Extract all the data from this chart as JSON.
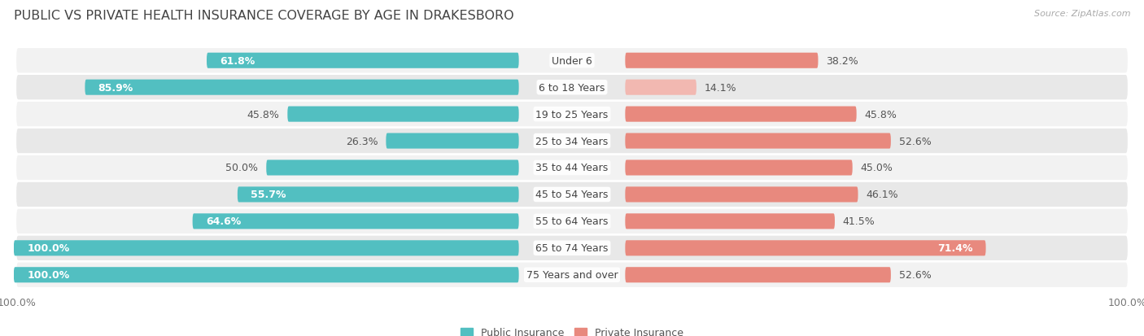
{
  "title": "PUBLIC VS PRIVATE HEALTH INSURANCE COVERAGE BY AGE IN DRAKESBORO",
  "source": "Source: ZipAtlas.com",
  "categories": [
    "Under 6",
    "6 to 18 Years",
    "19 to 25 Years",
    "25 to 34 Years",
    "35 to 44 Years",
    "45 to 54 Years",
    "55 to 64 Years",
    "65 to 74 Years",
    "75 Years and over"
  ],
  "public_values": [
    61.8,
    85.9,
    45.8,
    26.3,
    50.0,
    55.7,
    64.6,
    100.0,
    100.0
  ],
  "private_values": [
    38.2,
    14.1,
    45.8,
    52.6,
    45.0,
    46.1,
    41.5,
    71.4,
    52.6
  ],
  "public_color": "#52bfc1",
  "private_color": "#e8897e",
  "private_color_light": "#f2b8b1",
  "row_bg_even": "#f2f2f2",
  "row_bg_odd": "#e8e8e8",
  "bg_color": "#ffffff",
  "max_value": 100.0,
  "title_fontsize": 11.5,
  "label_fontsize": 9,
  "value_fontsize": 9,
  "tick_fontsize": 9,
  "source_fontsize": 8
}
